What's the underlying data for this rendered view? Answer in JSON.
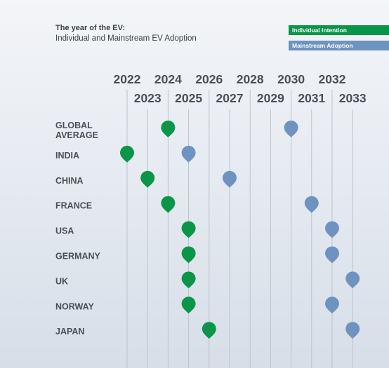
{
  "title": "The year of the EV:",
  "subtitle": "Individual and Mainstream EV Adoption",
  "legend": [
    {
      "label": "Individual Intention",
      "color": "#0a9548"
    },
    {
      "label": "Mainstream Adoption",
      "color": "#6f93c0"
    }
  ],
  "chart_data": {
    "type": "scatter",
    "title": "The year of the EV:",
    "subtitle": "Individual and Mainstream EV Adoption",
    "x": [
      2022,
      2023,
      2024,
      2025,
      2026,
      2027,
      2028,
      2029,
      2030,
      2031,
      2032,
      2033
    ],
    "categories": [
      [
        "GLOBAL",
        "AVERAGE"
      ],
      [
        "INDIA"
      ],
      [
        "CHINA"
      ],
      [
        "FRANCE"
      ],
      [
        "USA"
      ],
      [
        "GERMANY"
      ],
      [
        "UK"
      ],
      [
        "NORWAY"
      ],
      [
        "JAPAN"
      ]
    ],
    "series": [
      {
        "name": "Individual Intention",
        "color": "#0a9548",
        "values": [
          2024,
          2022,
          2023,
          2024,
          2025,
          2025,
          2025,
          2025,
          2026
        ]
      },
      {
        "name": "Mainstream Adoption",
        "color": "#6f93c0",
        "values": [
          2030,
          2025,
          2027,
          2031,
          2032,
          2032,
          2033,
          2032,
          2033
        ]
      }
    ],
    "legend_position": "top-right",
    "grid": true
  }
}
